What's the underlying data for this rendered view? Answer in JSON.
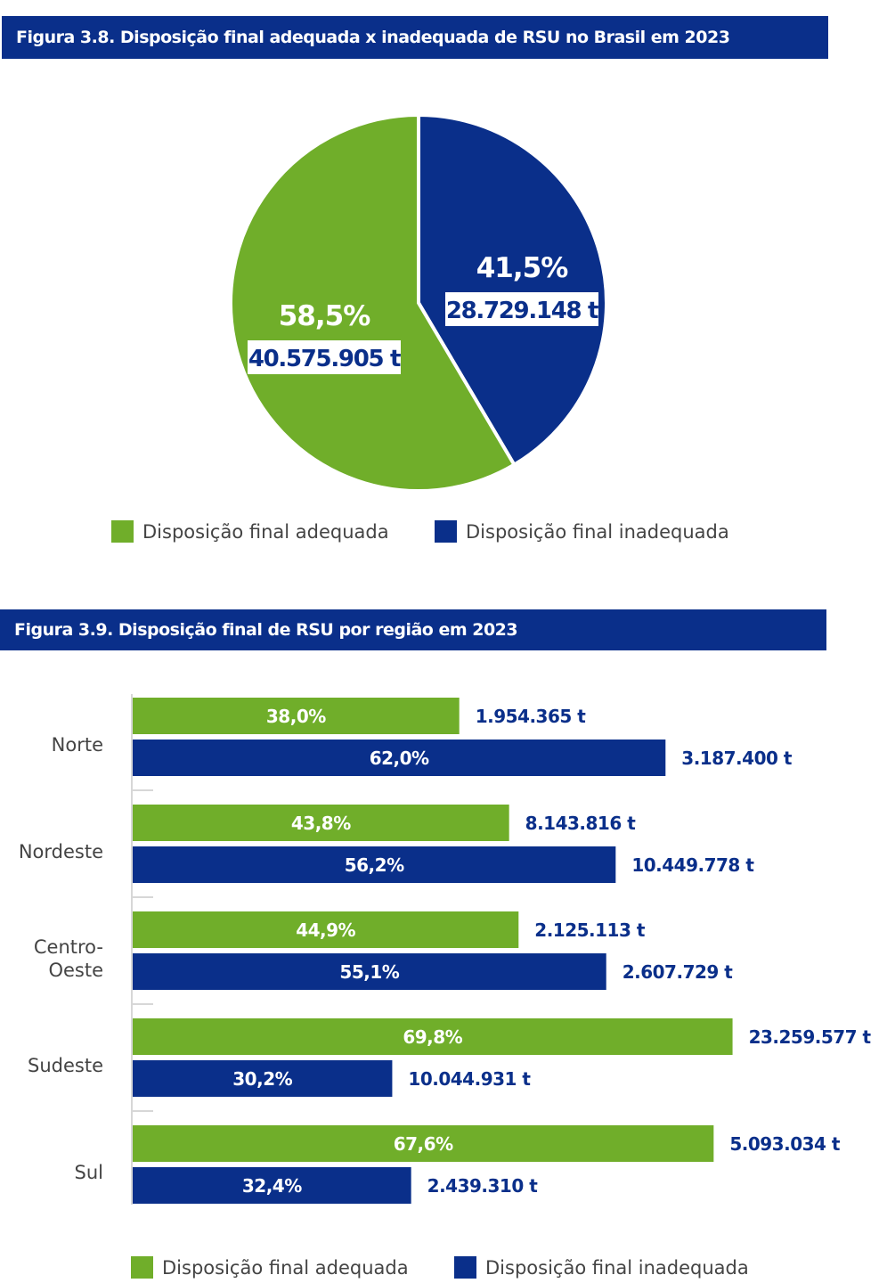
{
  "colors": {
    "adequada": "#70ae2a",
    "inadequada": "#0a2f8a",
    "header_bg": "#0a2f8a"
  },
  "fig1": {
    "title": "Figura 3.8. Disposição final adequada x inadequada de RSU no Brasil em 2023",
    "legend": [
      "Disposição final adequada",
      "Disposição final inadequada"
    ]
  },
  "fig2": {
    "title": "Figura 3.9. Disposição final de RSU por região em 2023",
    "legend": [
      "Disposição final adequada",
      "Disposição final inadequada"
    ]
  },
  "chart_data": [
    {
      "type": "pie",
      "slices": [
        {
          "label": "Disposição final adequada",
          "percent": 58.5,
          "percent_label": "58,5%",
          "value_label": "40.575.905 t"
        },
        {
          "label": "Disposição final inadequada",
          "percent": 41.5,
          "percent_label": "41,5%",
          "value_label": "28.729.148 t"
        }
      ]
    },
    {
      "type": "bar",
      "orientation": "horizontal",
      "categories": [
        "Norte",
        "Nordeste",
        "Centro-\nOeste",
        "Sudeste",
        "Sul"
      ],
      "series": [
        {
          "name": "Disposição final adequada",
          "values": [
            38.0,
            43.8,
            44.9,
            69.8,
            67.6
          ],
          "percent_labels": [
            "38,0%",
            "43,8%",
            "44,9%",
            "69,8%",
            "67,6%"
          ],
          "value_labels": [
            "1.954.365 t",
            "8.143.816 t",
            "2.125.113 t",
            "23.259.577 t",
            "5.093.034 t"
          ]
        },
        {
          "name": "Disposição final inadequada",
          "values": [
            62.0,
            56.2,
            55.1,
            30.2,
            32.4
          ],
          "percent_labels": [
            "62,0%",
            "56,2%",
            "55,1%",
            "30,2%",
            "32,4%"
          ],
          "value_labels": [
            "3.187.400 t",
            "10.449.778 t",
            "2.607.729 t",
            "10.044.931 t",
            "2.439.310 t"
          ]
        }
      ],
      "xlim": [
        0,
        70
      ]
    }
  ]
}
